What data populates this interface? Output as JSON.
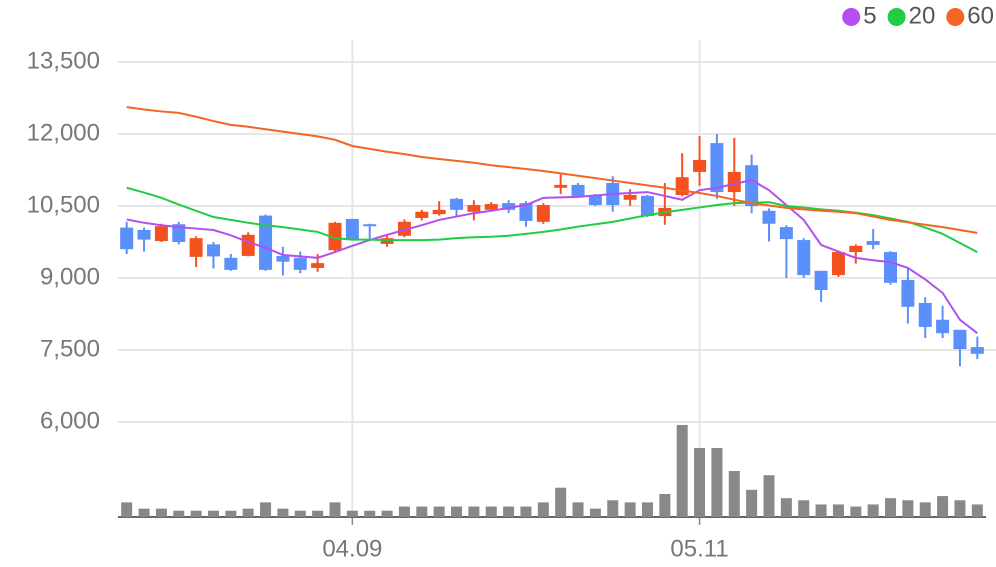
{
  "chart_data": {
    "type": "candlestick",
    "categories": [
      null,
      null,
      null,
      null,
      null,
      null,
      null,
      null,
      null,
      null,
      null,
      null,
      null,
      "04.09",
      null,
      null,
      null,
      null,
      null,
      null,
      null,
      null,
      null,
      null,
      null,
      null,
      null,
      null,
      null,
      null,
      null,
      null,
      null,
      "05.11",
      null,
      null,
      null,
      null,
      null,
      null,
      null,
      null,
      null,
      null,
      null,
      null,
      null,
      null,
      null,
      null
    ],
    "open": [
      10050,
      10000,
      9770,
      10120,
      9440,
      9700,
      9420,
      9460,
      10300,
      9460,
      9420,
      9210,
      9580,
      10230,
      10120,
      9710,
      9880,
      10250,
      10330,
      10650,
      10380,
      10420,
      10560,
      10560,
      10170,
      10880,
      10940,
      10730,
      10980,
      10630,
      10710,
      10290,
      10730,
      11210,
      11810,
      10790,
      11350,
      10400,
      10060,
      9790,
      9150,
      9060,
      9540,
      9770,
      9540,
      8960,
      8480,
      8130,
      7920,
      7560
    ],
    "high": [
      10170,
      10050,
      10130,
      10170,
      9870,
      9750,
      9500,
      9950,
      10320,
      9650,
      9550,
      9500,
      10170,
      10230,
      10130,
      9880,
      10220,
      10420,
      10600,
      10670,
      10620,
      10580,
      10620,
      10600,
      10560,
      11180,
      10980,
      10750,
      11120,
      10850,
      10730,
      10980,
      11600,
      11960,
      12000,
      11920,
      11570,
      10450,
      10100,
      9830,
      9150,
      9560,
      9700,
      10020,
      9560,
      9230,
      8600,
      8420,
      7920,
      7780
    ],
    "low": [
      9500,
      9550,
      9750,
      9700,
      9230,
      9200,
      9150,
      9450,
      9150,
      9050,
      9100,
      9130,
      9540,
      9790,
      9820,
      9650,
      9850,
      10200,
      10300,
      10300,
      10200,
      10400,
      10350,
      10070,
      10130,
      10750,
      10700,
      10500,
      10380,
      10500,
      10270,
      10110,
      10700,
      10920,
      10650,
      10500,
      10350,
      9760,
      9000,
      9000,
      8500,
      9020,
      9300,
      9600,
      8860,
      8050,
      7750,
      7750,
      7160,
      7310
    ],
    "close": [
      9600,
      9800,
      10080,
      9750,
      9830,
      9450,
      9170,
      9900,
      9170,
      9340,
      9170,
      9310,
      10150,
      9790,
      10080,
      9830,
      10170,
      10380,
      10420,
      10420,
      10520,
      10540,
      10420,
      10190,
      10520,
      10940,
      10710,
      10520,
      10520,
      10730,
      10290,
      10460,
      11100,
      11460,
      10790,
      11210,
      10500,
      10130,
      9810,
      9060,
      8750,
      9540,
      9670,
      9690,
      8900,
      8400,
      7980,
      7850,
      7520,
      7420
    ],
    "volume": [
      14,
      8,
      8,
      6,
      6,
      6,
      6,
      8,
      14,
      8,
      6,
      6,
      14,
      6,
      6,
      6,
      10,
      10,
      10,
      10,
      10,
      10,
      10,
      10,
      14,
      28,
      14,
      8,
      16,
      14,
      14,
      22,
      88,
      66,
      66,
      44,
      26,
      40,
      18,
      16,
      12,
      12,
      10,
      12,
      18,
      16,
      14,
      20,
      16,
      12
    ],
    "up_color": "#f4511e",
    "down_color": "#5b8ff9",
    "volume_color": "#888888",
    "series": [
      {
        "name": "5",
        "color": "#b44ef0",
        "values": [
          10220,
          10150,
          10100,
          10060,
          10030,
          10000,
          9890,
          9750,
          9630,
          9480,
          9450,
          9420,
          9540,
          9670,
          9790,
          9900,
          10000,
          10100,
          10210,
          10280,
          10350,
          10400,
          10460,
          10520,
          10670,
          10680,
          10690,
          10720,
          10750,
          10770,
          10790,
          10710,
          10630,
          10830,
          10880,
          10960,
          11040,
          10830,
          10520,
          10210,
          9690,
          9550,
          9420,
          9370,
          9330,
          9210,
          8970,
          8690,
          8130,
          7850
        ]
      },
      {
        "name": "20",
        "color": "#22cc44",
        "values": [
          10880,
          10780,
          10670,
          10530,
          10400,
          10270,
          10210,
          10150,
          10100,
          10060,
          10010,
          9960,
          9830,
          9800,
          9800,
          9790,
          9790,
          9790,
          9800,
          9830,
          9850,
          9860,
          9880,
          9920,
          9960,
          10010,
          10070,
          10120,
          10170,
          10240,
          10310,
          10370,
          10420,
          10470,
          10520,
          10560,
          10570,
          10580,
          10500,
          10470,
          10430,
          10400,
          10360,
          10310,
          10240,
          10170,
          10050,
          9920,
          9730,
          9540
        ]
      },
      {
        "name": "60",
        "color": "#f26522",
        "values": [
          12560,
          12510,
          12470,
          12440,
          12360,
          12270,
          12190,
          12150,
          12100,
          12050,
          12000,
          11950,
          11880,
          11750,
          11690,
          11630,
          11580,
          11520,
          11480,
          11440,
          11400,
          11350,
          11310,
          11270,
          11230,
          11180,
          11130,
          11080,
          11030,
          10980,
          10930,
          10880,
          10820,
          10770,
          10710,
          10630,
          10560,
          10510,
          10460,
          10430,
          10400,
          10380,
          10350,
          10280,
          10210,
          10160,
          10110,
          10060,
          10000,
          9940
        ]
      }
    ],
    "ylim": [
      6000,
      13500
    ],
    "yticks": [
      {
        "value": 6000,
        "label": "6,000"
      },
      {
        "value": 7500,
        "label": "7,500"
      },
      {
        "value": 9000,
        "label": "9,000"
      },
      {
        "value": 10500,
        "label": "10,500"
      },
      {
        "value": 12000,
        "label": "12,000"
      },
      {
        "value": 13500,
        "label": "13,500"
      }
    ],
    "grid": true
  }
}
